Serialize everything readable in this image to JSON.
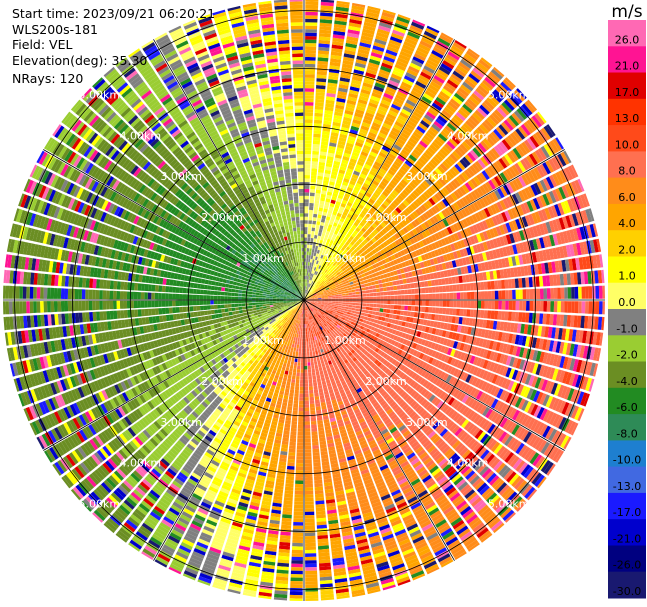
{
  "header": {
    "start_time": "Start time: 2023/09/21 06:20:21",
    "instrument": "WLS200s-181",
    "field": "Field: VEL",
    "elevation": "Elevation(deg): 35.30",
    "nrays": "NRays: 120"
  },
  "chart_data": {
    "type": "ppi-polar",
    "field": "VEL",
    "units": "m/s",
    "nrays": 120,
    "max_range_km": 5.2,
    "range_rings_km": [
      1.0,
      2.0,
      3.0,
      4.0,
      5.0
    ],
    "ring_labels": [
      "1.00km",
      "2.00km",
      "3.00km",
      "4.00km",
      "5.00km"
    ],
    "colorbar": {
      "title": "m/s",
      "tick_labels": [
        "26.0",
        "21.0",
        "17.0",
        "13.0",
        "10.0",
        "8.0",
        "6.0",
        "4.0",
        "2.0",
        "1.0",
        "0.0",
        "-1.0",
        "-2.0",
        "-4.0",
        "-6.0",
        "-8.0",
        "-10.0",
        "-13.0",
        "-17.0",
        "-21.0",
        "-26.0",
        "-30.0"
      ],
      "colors": [
        "#ff69b4",
        "#ff1493",
        "#e00000",
        "#ff3300",
        "#ff4a1a",
        "#ff7050",
        "#ff8c1a",
        "#ffa500",
        "#ffd000",
        "#ffff00",
        "#ffff66",
        "#808080",
        "#9acd32",
        "#6b8e23",
        "#228b22",
        "#2e8b57",
        "#1e7fd0",
        "#4169e1",
        "#1a1aff",
        "#0000cd",
        "#000080",
        "#191970"
      ]
    },
    "sectors": [
      {
        "dir": "N",
        "azimuth_deg": 0,
        "near_value": -3.0,
        "far_value": 3.0
      },
      {
        "dir": "NE",
        "azimuth_deg": 45,
        "near_value": 0.5,
        "far_value": 5.0
      },
      {
        "dir": "E",
        "azimuth_deg": 90,
        "near_value": 7.0,
        "far_value": 8.5
      },
      {
        "dir": "SE",
        "azimuth_deg": 135,
        "near_value": 8.0,
        "far_value": 6.0
      },
      {
        "dir": "S",
        "azimuth_deg": 180,
        "near_value": 8.5,
        "far_value": 1.5
      },
      {
        "dir": "SW",
        "azimuth_deg": 225,
        "near_value": 2.0,
        "far_value": -6.0
      },
      {
        "dir": "W",
        "azimuth_deg": 270,
        "near_value": -8.0,
        "far_value": -5.0
      },
      {
        "dir": "NW",
        "azimuth_deg": 315,
        "near_value": -9.0,
        "far_value": -3.0
      }
    ]
  }
}
